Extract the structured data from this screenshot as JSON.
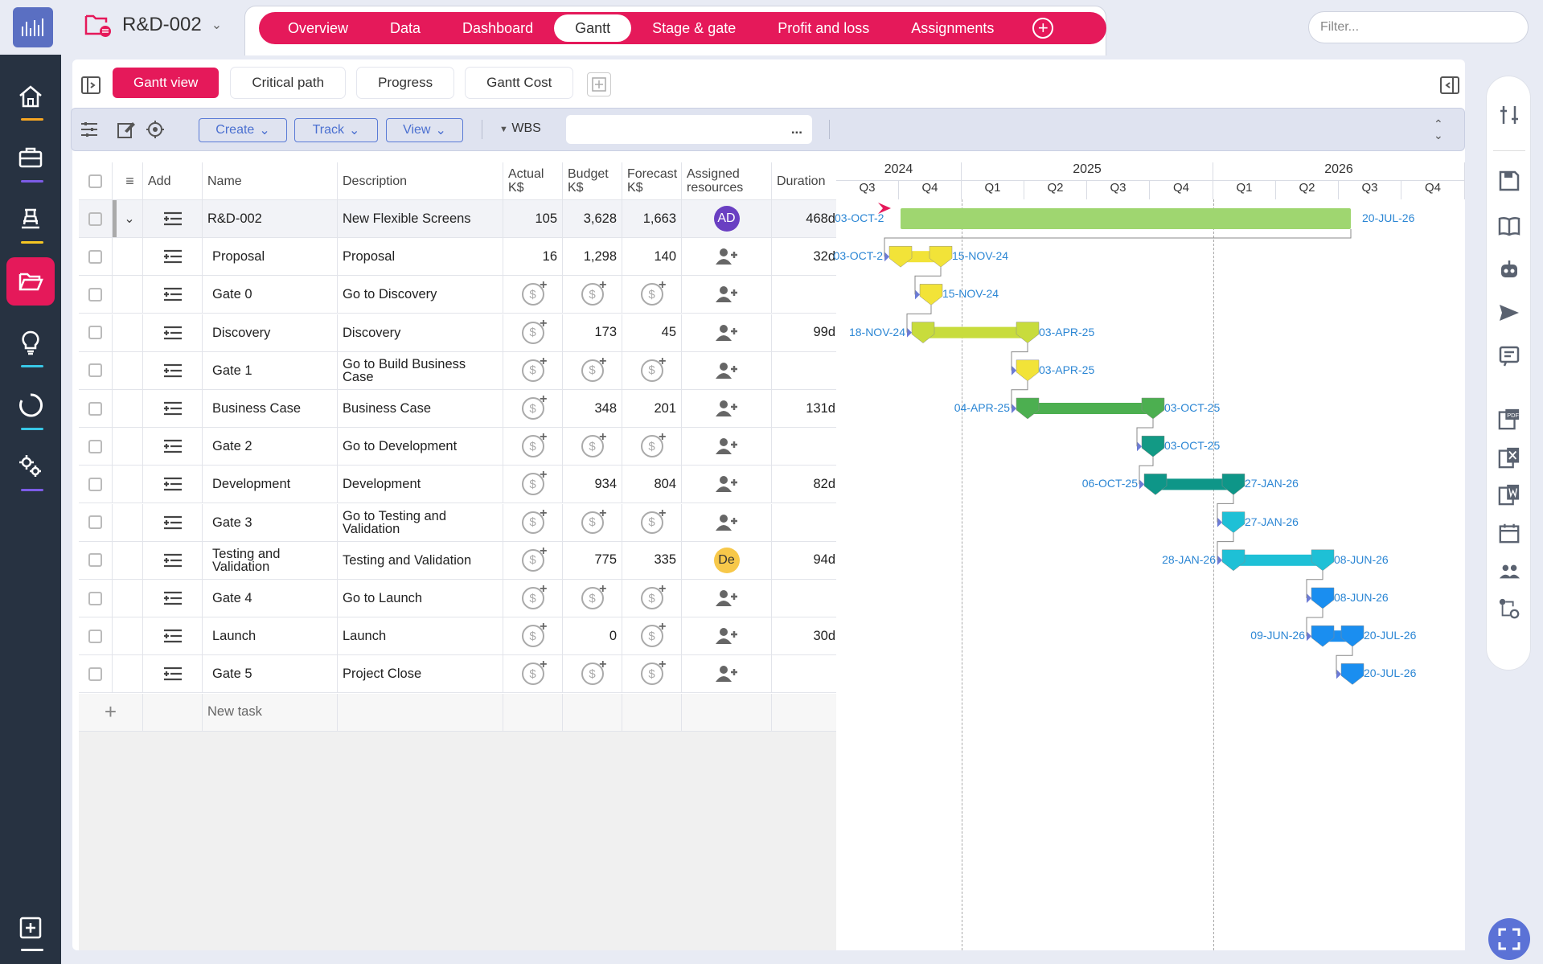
{
  "project": {
    "name": "R&D-002"
  },
  "tabs": [
    "Overview",
    "Data",
    "Dashboard",
    "Gantt",
    "Stage & gate",
    "Profit and loss",
    "Assignments"
  ],
  "selected_tab": "Gantt",
  "filter_placeholder": "Filter...",
  "subtabs": [
    "Gantt view",
    "Critical path",
    "Progress",
    "Gantt Cost"
  ],
  "selected_subtab": "Gantt view",
  "toolbar": {
    "create": "Create",
    "track": "Track",
    "view": "View",
    "wbs": "WBS"
  },
  "columns": {
    "add": "Add",
    "name": "Name",
    "description": "Description",
    "actual": "Actual K$",
    "budget": "Budget K$",
    "forecast": "Forecast K$",
    "resources": "Assigned resources",
    "duration": "Duration"
  },
  "rows": [
    {
      "name": "R&D-002",
      "description": "New Flexible Screens",
      "actual": "105",
      "budget": "3,628",
      "forecast": "1,663",
      "resource": "AD",
      "resource_color": "#6a3fc2",
      "duration": "468d"
    },
    {
      "name": "Proposal",
      "description": "Proposal",
      "actual": "16",
      "budget": "1,298",
      "forecast": "140",
      "resource": "",
      "duration": "32d"
    },
    {
      "name": "Gate 0",
      "description": "Go to Discovery",
      "actual": "",
      "budget": "",
      "forecast": "",
      "resource": "",
      "duration": ""
    },
    {
      "name": "Discovery",
      "description": "Discovery",
      "actual": "",
      "budget": "173",
      "forecast": "45",
      "resource": "",
      "duration": "99d"
    },
    {
      "name": "Gate 1",
      "description": "Go to Build Business Case",
      "actual": "",
      "budget": "",
      "forecast": "",
      "resource": "",
      "duration": ""
    },
    {
      "name": "Business Case",
      "description": "Business Case",
      "actual": "",
      "budget": "348",
      "forecast": "201",
      "resource": "",
      "duration": "131d"
    },
    {
      "name": "Gate 2",
      "description": "Go to Development",
      "actual": "",
      "budget": "",
      "forecast": "",
      "resource": "",
      "duration": ""
    },
    {
      "name": "Development",
      "description": "Development",
      "actual": "",
      "budget": "934",
      "forecast": "804",
      "resource": "",
      "duration": "82d"
    },
    {
      "name": "Gate 3",
      "description": "Go to Testing and Validation",
      "actual": "",
      "budget": "",
      "forecast": "",
      "resource": "",
      "duration": ""
    },
    {
      "name": "Testing and Validation",
      "description": "Testing and Validation",
      "actual": "",
      "budget": "775",
      "forecast": "335",
      "resource": "De",
      "resource_color": "#f7c84a",
      "duration": "94d"
    },
    {
      "name": "Gate 4",
      "description": "Go to Launch",
      "actual": "",
      "budget": "",
      "forecast": "",
      "resource": "",
      "duration": ""
    },
    {
      "name": "Launch",
      "description": "Launch",
      "actual": "",
      "budget": "0",
      "forecast": "",
      "resource": "",
      "duration": "30d"
    },
    {
      "name": "Gate 5",
      "description": "Project Close",
      "actual": "",
      "budget": "",
      "forecast": "",
      "resource": "",
      "duration": ""
    }
  ],
  "new_task": "New task",
  "gantt": {
    "years": [
      "2024",
      "2025",
      "2026"
    ],
    "quarters": [
      "Q3",
      "Q4",
      "Q1",
      "Q2",
      "Q3",
      "Q4",
      "Q1",
      "Q2",
      "Q3",
      "Q4"
    ],
    "bars": [
      {
        "start": "03-OCT-2",
        "end": "20-JUL-26",
        "color": "#9fd670"
      },
      {
        "start": "03-OCT-2",
        "end": "15-NOV-24",
        "color": "#f2e338"
      },
      {
        "start": "",
        "end": "15-NOV-24",
        "color": "#f2e338"
      },
      {
        "start": "18-NOV-24",
        "end": "03-APR-25",
        "color": "#c8dc3c"
      },
      {
        "start": "",
        "end": "03-APR-25",
        "color": "#f2e338"
      },
      {
        "start": "04-APR-25",
        "end": "03-OCT-25",
        "color": "#4caf50"
      },
      {
        "start": "",
        "end": "03-OCT-25",
        "color": "#129a85"
      },
      {
        "start": "06-OCT-25",
        "end": "27-JAN-26",
        "color": "#0e9688"
      },
      {
        "start": "",
        "end": "27-JAN-26",
        "color": "#1ec0d6"
      },
      {
        "start": "28-JAN-26",
        "end": "08-JUN-26",
        "color": "#1ec0d6"
      },
      {
        "start": "",
        "end": "08-JUN-26",
        "color": "#1a8ef0"
      },
      {
        "start": "09-JUN-26",
        "end": "20-JUL-26",
        "color": "#1a8ef0"
      },
      {
        "start": "",
        "end": "20-JUL-26",
        "color": "#1a8ef0"
      }
    ]
  },
  "colors": {
    "accent": "#e5195a",
    "sidebar": "#273241"
  }
}
